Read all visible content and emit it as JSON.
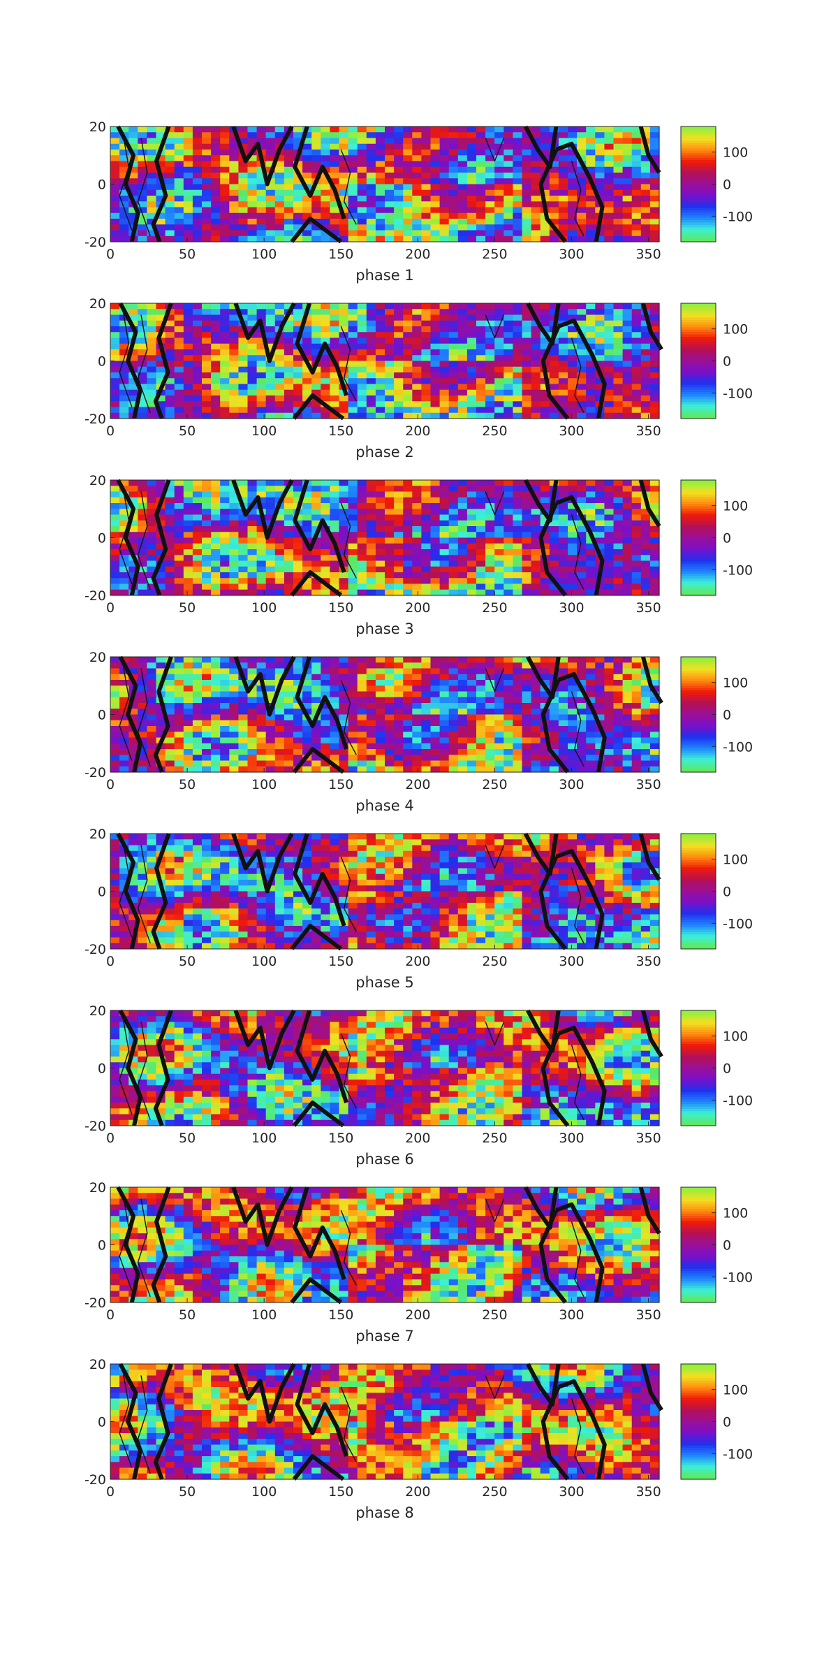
{
  "figure": {
    "colormap_stops": [
      "#5fe85a",
      "#3cf0d8",
      "#1f84ff",
      "#2030ee",
      "#7a10c8",
      "#9a1098",
      "#b41055",
      "#f01a0a",
      "#ff8c10",
      "#f2e020",
      "#8ef040"
    ],
    "contour_color": "#111111",
    "background": "#ffffff"
  },
  "chart_data": [
    {
      "type": "heatmap",
      "title": "",
      "xlabel": "phase 1",
      "ylabel": "",
      "xlim": [
        0,
        357
      ],
      "ylim": [
        -20,
        20
      ],
      "xticks": [
        "0",
        "50",
        "100",
        "150",
        "200",
        "250",
        "300",
        "350"
      ],
      "yticks": [
        "20",
        "0",
        "-20"
      ],
      "colorbar": {
        "ticks": [
          "100",
          "0",
          "-100"
        ],
        "range": [
          -180,
          180
        ]
      },
      "overlay": "black contour lines",
      "values_note": "phase angle field in degrees on a 0–357 x -20–20 grid"
    },
    {
      "type": "heatmap",
      "title": "",
      "xlabel": "phase 2",
      "ylabel": "",
      "xlim": [
        0,
        357
      ],
      "ylim": [
        -20,
        20
      ],
      "xticks": [
        "0",
        "50",
        "100",
        "150",
        "200",
        "250",
        "300",
        "350"
      ],
      "yticks": [
        "20",
        "0",
        "-20"
      ],
      "colorbar": {
        "ticks": [
          "100",
          "0",
          "-100"
        ],
        "range": [
          -180,
          180
        ]
      },
      "overlay": "black contour lines",
      "values_note": "phase angle field in degrees on a 0–357 x -20–20 grid"
    },
    {
      "type": "heatmap",
      "title": "",
      "xlabel": "phase 3",
      "ylabel": "",
      "xlim": [
        0,
        357
      ],
      "ylim": [
        -20,
        20
      ],
      "xticks": [
        "0",
        "50",
        "100",
        "150",
        "200",
        "250",
        "300",
        "350"
      ],
      "yticks": [
        "20",
        "0",
        "-20"
      ],
      "colorbar": {
        "ticks": [
          "100",
          "0",
          "-100"
        ],
        "range": [
          -180,
          180
        ]
      },
      "overlay": "black contour lines",
      "values_note": "phase angle field in degrees on a 0–357 x -20–20 grid"
    },
    {
      "type": "heatmap",
      "title": "",
      "xlabel": "phase 4",
      "ylabel": "",
      "xlim": [
        0,
        357
      ],
      "ylim": [
        -20,
        20
      ],
      "xticks": [
        "0",
        "50",
        "100",
        "150",
        "200",
        "250",
        "300",
        "350"
      ],
      "yticks": [
        "20",
        "0",
        "-20"
      ],
      "colorbar": {
        "ticks": [
          "100",
          "0",
          "-100"
        ],
        "range": [
          -180,
          180
        ]
      },
      "overlay": "black contour lines",
      "values_note": "phase angle field in degrees on a 0–357 x -20–20 grid"
    },
    {
      "type": "heatmap",
      "title": "",
      "xlabel": "phase 5",
      "ylabel": "",
      "xlim": [
        0,
        357
      ],
      "ylim": [
        -20,
        20
      ],
      "xticks": [
        "0",
        "50",
        "100",
        "150",
        "200",
        "250",
        "300",
        "350"
      ],
      "yticks": [
        "20",
        "0",
        "-20"
      ],
      "colorbar": {
        "ticks": [
          "100",
          "0",
          "-100"
        ],
        "range": [
          -180,
          180
        ]
      },
      "overlay": "black contour lines",
      "values_note": "phase angle field in degrees on a 0–357 x -20–20 grid"
    },
    {
      "type": "heatmap",
      "title": "",
      "xlabel": "phase 6",
      "ylabel": "",
      "xlim": [
        0,
        357
      ],
      "ylim": [
        -20,
        20
      ],
      "xticks": [
        "0",
        "50",
        "100",
        "150",
        "200",
        "250",
        "300",
        "350"
      ],
      "yticks": [
        "20",
        "0",
        "-20"
      ],
      "colorbar": {
        "ticks": [
          "100",
          "0",
          "-100"
        ],
        "range": [
          -180,
          180
        ]
      },
      "overlay": "black contour lines",
      "values_note": "phase angle field in degrees on a 0–357 x -20–20 grid"
    },
    {
      "type": "heatmap",
      "title": "",
      "xlabel": "phase 7",
      "ylabel": "",
      "xlim": [
        0,
        357
      ],
      "ylim": [
        -20,
        20
      ],
      "xticks": [
        "0",
        "50",
        "100",
        "150",
        "200",
        "250",
        "300",
        "350"
      ],
      "yticks": [
        "20",
        "0",
        "-20"
      ],
      "colorbar": {
        "ticks": [
          "100",
          "0",
          "-100"
        ],
        "range": [
          -180,
          180
        ]
      },
      "overlay": "black contour lines",
      "values_note": "phase angle field in degrees on a 0–357 x -20–20 grid"
    },
    {
      "type": "heatmap",
      "title": "",
      "xlabel": "phase 8",
      "ylabel": "",
      "xlim": [
        0,
        357
      ],
      "ylim": [
        -20,
        20
      ],
      "xticks": [
        "0",
        "50",
        "100",
        "150",
        "200",
        "250",
        "300",
        "350"
      ],
      "yticks": [
        "20",
        "0",
        "-20"
      ],
      "colorbar": {
        "ticks": [
          "100",
          "0",
          "-100"
        ],
        "range": [
          -180,
          180
        ]
      },
      "overlay": "black contour lines",
      "values_note": "phase angle field in degrees on a 0–357 x -20–20 grid"
    }
  ]
}
